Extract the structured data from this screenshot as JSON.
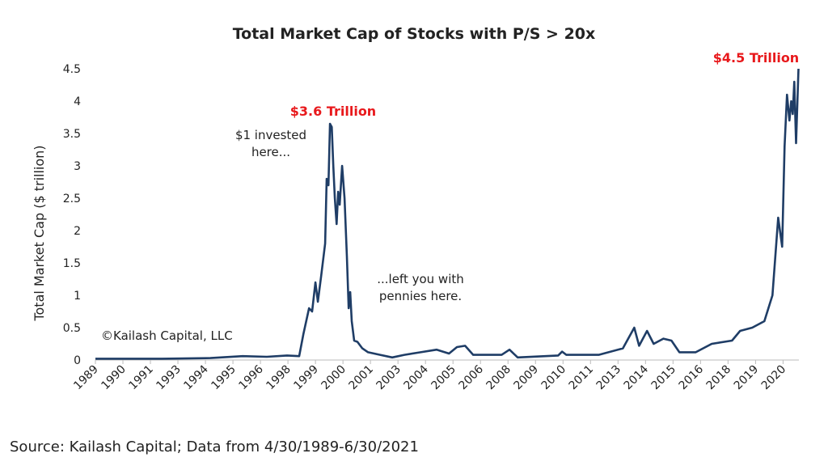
{
  "chart_data": {
    "type": "line",
    "title": "Total Market Cap of Stocks with P/S > 20x",
    "y_label": "Total Market Cap ($ trillion)",
    "source": "Source: Kailash Capital; Data from 4/30/1989-6/30/2021",
    "annotations": [
      {
        "lines": [
          "$3.6 Trillion"
        ],
        "color": "#e8191c"
      },
      {
        "lines": [
          "$4.5 Trillion"
        ],
        "color": "#e8191c"
      },
      {
        "lines": [
          "$1 invested",
          "here..."
        ],
        "color": "#222222"
      },
      {
        "lines": [
          "...left you with",
          "pennies here."
        ],
        "color": "#222222"
      },
      {
        "lines": [
          "©Kailash Capital, LLC"
        ],
        "color": "#222222"
      }
    ],
    "xlim": [
      1989.33,
      2021.3
    ],
    "xticks": [
      {
        "value": 1989.33,
        "label": "1989"
      },
      {
        "value": 1990.58,
        "label": "1990"
      },
      {
        "value": 1991.83,
        "label": "1991"
      },
      {
        "value": 1993.08,
        "label": "1993"
      },
      {
        "value": 1994.33,
        "label": "1994"
      },
      {
        "value": 1995.58,
        "label": "1995"
      },
      {
        "value": 1996.83,
        "label": "1996"
      },
      {
        "value": 1998.08,
        "label": "1998"
      },
      {
        "value": 1999.33,
        "label": "1999"
      },
      {
        "value": 2000.58,
        "label": "2000"
      },
      {
        "value": 2001.83,
        "label": "2001"
      },
      {
        "value": 2003.08,
        "label": "2003"
      },
      {
        "value": 2004.33,
        "label": "2004"
      },
      {
        "value": 2005.58,
        "label": "2005"
      },
      {
        "value": 2006.83,
        "label": "2006"
      },
      {
        "value": 2008.08,
        "label": "2008"
      },
      {
        "value": 2009.33,
        "label": "2009"
      },
      {
        "value": 2010.58,
        "label": "2010"
      },
      {
        "value": 2011.83,
        "label": "2011"
      },
      {
        "value": 2013.08,
        "label": "2013"
      },
      {
        "value": 2014.33,
        "label": "2014"
      },
      {
        "value": 2015.58,
        "label": "2015"
      },
      {
        "value": 2016.83,
        "label": "2016"
      },
      {
        "value": 2018.08,
        "label": "2018"
      },
      {
        "value": 2019.33,
        "label": "2019"
      },
      {
        "value": 2020.58,
        "label": "2020"
      }
    ],
    "ylim": [
      0,
      4.5
    ],
    "yticks": [
      0,
      0.5,
      1,
      1.5,
      2,
      2.5,
      3,
      3.5,
      4,
      4.5
    ],
    "grid": false,
    "x": [
      1989.33,
      1992.34,
      1994.55,
      1996.02,
      1997.12,
      1998.04,
      1998.59,
      1998.78,
      1999.04,
      1999.18,
      1999.33,
      1999.44,
      1999.59,
      1999.77,
      1999.84,
      1999.92,
      1999.99,
      2000.07,
      2000.14,
      2000.21,
      2000.29,
      2000.36,
      2000.43,
      2000.54,
      2000.65,
      2000.76,
      2000.84,
      2000.91,
      2000.98,
      2001.09,
      2001.24,
      2001.46,
      2001.72,
      2002.27,
      2002.82,
      2003.37,
      2004.11,
      2004.84,
      2005.4,
      2005.76,
      2006.13,
      2006.5,
      2007.79,
      2008.15,
      2008.52,
      2010.36,
      2010.54,
      2010.73,
      2012.2,
      2013.3,
      2013.82,
      2014.04,
      2014.4,
      2014.7,
      2015.14,
      2015.51,
      2015.87,
      2016.61,
      2017.34,
      2018.26,
      2018.63,
      2019.18,
      2019.73,
      2020.1,
      2020.36,
      2020.54,
      2020.65,
      2020.76,
      2020.87,
      2020.95,
      2021.02,
      2021.09,
      2021.17,
      2021.28
    ],
    "series": [
      {
        "color": "#1f3d66",
        "values": [
          0.02,
          0.02,
          0.03,
          0.06,
          0.05,
          0.07,
          0.06,
          0.4,
          0.8,
          0.75,
          1.2,
          0.9,
          1.3,
          1.8,
          2.8,
          2.7,
          3.65,
          3.6,
          3.0,
          2.5,
          2.1,
          2.6,
          2.4,
          3.0,
          2.5,
          1.6,
          0.8,
          1.05,
          0.6,
          0.3,
          0.28,
          0.18,
          0.12,
          0.08,
          0.04,
          0.08,
          0.12,
          0.16,
          0.1,
          0.2,
          0.22,
          0.08,
          0.08,
          0.16,
          0.04,
          0.07,
          0.13,
          0.08,
          0.08,
          0.18,
          0.5,
          0.22,
          0.45,
          0.25,
          0.33,
          0.3,
          0.12,
          0.12,
          0.25,
          0.3,
          0.45,
          0.5,
          0.6,
          1.0,
          2.2,
          1.75,
          3.3,
          4.1,
          3.7,
          4.0,
          3.8,
          4.3,
          3.35,
          4.5
        ]
      }
    ]
  }
}
